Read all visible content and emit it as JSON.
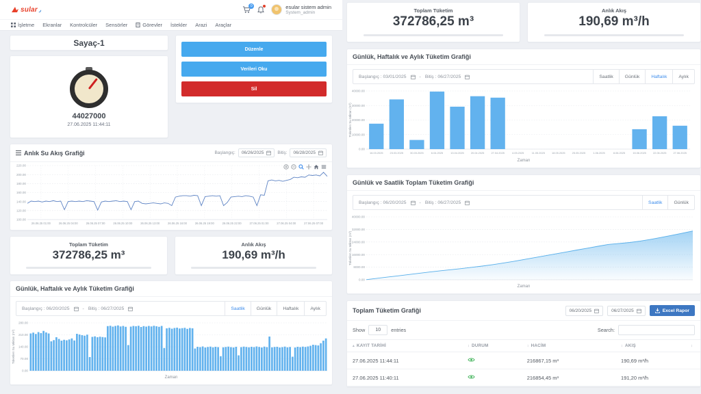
{
  "brand": {
    "logo_text": "sular",
    "accent": "#e8402a"
  },
  "header": {
    "cart_badge": "0",
    "user_name": "esular sistem admin",
    "user_role": "System_admin"
  },
  "nav": {
    "items": [
      "İşletme",
      "Ekranlar",
      "Kontrolcüler",
      "Sensörler",
      "Görevler",
      "İstekler",
      "Arazi",
      "Araçlar"
    ]
  },
  "meter": {
    "title": "Sayaç-1",
    "value": "44027000",
    "timestamp": "27.06.2025 11:44:11"
  },
  "actions": {
    "edit": "Düzenle",
    "read": "Verileri Oku",
    "delete": "Sil"
  },
  "flow_chart": {
    "title": "Anlık Su Akış Grafiği",
    "start_label": "Başlangıç:",
    "start_value": "06/26/2025",
    "end_label": "Bitiş:",
    "end_value": "06/28/2025"
  },
  "metrics": {
    "total_label": "Toplam Tüketim",
    "total_value": "372786,25 m³",
    "flow_label": "Anlık Akış",
    "flow_value": "190,69 m³/h"
  },
  "consumption_left": {
    "title": "Günlük, Haftalık ve Aylık Tüketim Grafiği",
    "start": "Başlangıç : 06/20/2025",
    "sep": "-",
    "end": "Bitiş : 06/27/2025",
    "tabs": [
      "Saatlik",
      "Günlük",
      "Haftalık",
      "Aylık"
    ]
  },
  "consumption_right": {
    "title": "Günlük, Haftalık ve Aylık Tüketim Grafiği",
    "start": "Başlangıç : 03/01/2025",
    "sep": "-",
    "end": "Bitiş : 06/27/2025",
    "tabs": [
      "Saatlik",
      "Günlük",
      "Haftalık",
      "Aylık"
    ]
  },
  "daily_hourly": {
    "title": "Günlük ve Saatlik Toplam Tüketim Grafiği",
    "start": "Başlangıç : 06/20/2025",
    "sep": "-",
    "end": "Bitiş : 06/27/2025",
    "tabs": [
      "Saatlik",
      "Günlük"
    ]
  },
  "report": {
    "title": "Toplam Tüketim Grafiği",
    "date_from": "06/20/2025",
    "date_to": "06/27/2025",
    "excel_button": "Excel Rapor",
    "show_label": "Show",
    "entries_value": "10",
    "entries_label": "entries",
    "search_label": "Search:",
    "table": {
      "headers": [
        "KAYIT TARİHİ",
        "DURUM",
        "HACİM",
        "AKIŞ"
      ],
      "rows": [
        {
          "date": "27.06.2025 11:44:11",
          "volume": "216867,15 m³",
          "flow": "190,69 m³/h"
        },
        {
          "date": "27.06.2025 11:40:11",
          "volume": "216854,45 m³",
          "flow": "191,20 m³/h"
        }
      ]
    }
  },
  "chart_data": [
    {
      "type": "line",
      "title": "Anlık Su Akış Grafiği",
      "ylabel": "",
      "xlabel": "",
      "ylim": [
        100,
        220
      ],
      "yticks": [
        "220.00",
        "200.00",
        "180.00",
        "160.00",
        "140.00",
        "120.00",
        "100.00"
      ],
      "x_labels": [
        "26.06.25 01:00",
        "26.06.25 04:00",
        "26.06.25 07:00",
        "26.06.25 10:00",
        "26.06.25 13:00",
        "26.06.25 16:00",
        "26.06.25 19:00",
        "26.06.25 22:00",
        "27.06.25 01:00",
        "27.06.25 04:00",
        "27.06.25 07:00"
      ],
      "color": "#5d83c4",
      "grid": true,
      "values": [
        136,
        141,
        140,
        141,
        139,
        141,
        140,
        142,
        140,
        141,
        122,
        140,
        141,
        140,
        141,
        140,
        142,
        141,
        140,
        121,
        139,
        141,
        140,
        141,
        142,
        140,
        141,
        140,
        122,
        140,
        141,
        136,
        135,
        136,
        137,
        136,
        135,
        137,
        136,
        131,
        150,
        152,
        153,
        153,
        152,
        154,
        153,
        131,
        151,
        152,
        153,
        152,
        153,
        131,
        138,
        150,
        151,
        152,
        151,
        153,
        152,
        150,
        131,
        155,
        154,
        186,
        188,
        186,
        187,
        185,
        187,
        189,
        194,
        193,
        195,
        194,
        199,
        198,
        199,
        197,
        205,
        196
      ]
    },
    {
      "type": "bar",
      "title": "Günlük, Haftalık ve Aylık Tüketim Grafiği (Saatlik)",
      "ylabel": "Tüketilen Su Miktarı (m³)",
      "xlabel": "Zaman",
      "ylim": [
        0,
        280
      ],
      "yticks": [
        "280.00",
        "210.00",
        "140.00",
        "70.00",
        "0.00"
      ],
      "color": "#62b2ee",
      "grid": true,
      "values": [
        218,
        223,
        215,
        226,
        220,
        233,
        224,
        218,
        172,
        179,
        196,
        186,
        176,
        181,
        178,
        183,
        189,
        177,
        216,
        212,
        208,
        205,
        211,
        80,
        198,
        201,
        196,
        199,
        197,
        195,
        261,
        263,
        258,
        262,
        265,
        259,
        262,
        257,
        150,
        258,
        262,
        260,
        263,
        256,
        261,
        258,
        262,
        259,
        263,
        260,
        257,
        262,
        133,
        248,
        251,
        246,
        250,
        252,
        247,
        249,
        251,
        245,
        250,
        248,
        130,
        140,
        138,
        142,
        136,
        139,
        141,
        137,
        140,
        138,
        85,
        137,
        139,
        141,
        138,
        136,
        140,
        90,
        138,
        141,
        139,
        137,
        140,
        138,
        142,
        139,
        136,
        141,
        138,
        200,
        137,
        139,
        140,
        136,
        138,
        141,
        137,
        139,
        82,
        136,
        140,
        138,
        141,
        139,
        142,
        146,
        152,
        150,
        148,
        161,
        176,
        189
      ]
    },
    {
      "type": "bar",
      "title": "Günlük, Haftalık ve Aylık Tüketim Grafiği (Haftalık)",
      "ylabel": "Tüketilen Su Miktarı (m³)",
      "xlabel": "Zaman",
      "ylim": [
        0,
        40000
      ],
      "yticks": [
        "40000.00",
        "30000.00",
        "20000.00",
        "10000.00",
        "0.00"
      ],
      "color": "#62b2ee",
      "grid": true,
      "categories": [
        "16.03.2025",
        "23.03.2025",
        "30.03.2025",
        "6.04.2025",
        "13.04.2025",
        "20.04.2025",
        "27.04.2025",
        "4.05.2025",
        "11.05.2025",
        "18.05.2025",
        "25.05.2025",
        "1.06.2025",
        "8.06.2025",
        "15.06.2025",
        "22.06.2025",
        "27.06.2025"
      ],
      "values": [
        17500,
        34200,
        6300,
        39600,
        29200,
        36400,
        35400,
        0,
        0,
        0,
        0,
        0,
        0,
        13700,
        22600,
        16100
      ]
    },
    {
      "type": "area",
      "title": "Günlük ve Saatlik Toplam Tüketim Grafiği",
      "ylabel": "Tüketilen Su Miktarı (m³)",
      "xlabel": "Zaman",
      "ylim": [
        0,
        40000
      ],
      "yticks": [
        "40000.00",
        "32000.00",
        "24000.00",
        "16000.00",
        "8000.00",
        "0.00"
      ],
      "color": "#55aeea",
      "grid": true,
      "values": [
        100,
        900,
        1700,
        2500,
        3300,
        4100,
        4900,
        5700,
        6400,
        7100,
        7900,
        8700,
        9600,
        10600,
        11700,
        12900,
        14100,
        15300,
        16500,
        17700,
        18900,
        20100,
        21300,
        22500,
        23100,
        23700,
        24600,
        25700,
        26900,
        28200,
        29600,
        31000
      ]
    }
  ]
}
